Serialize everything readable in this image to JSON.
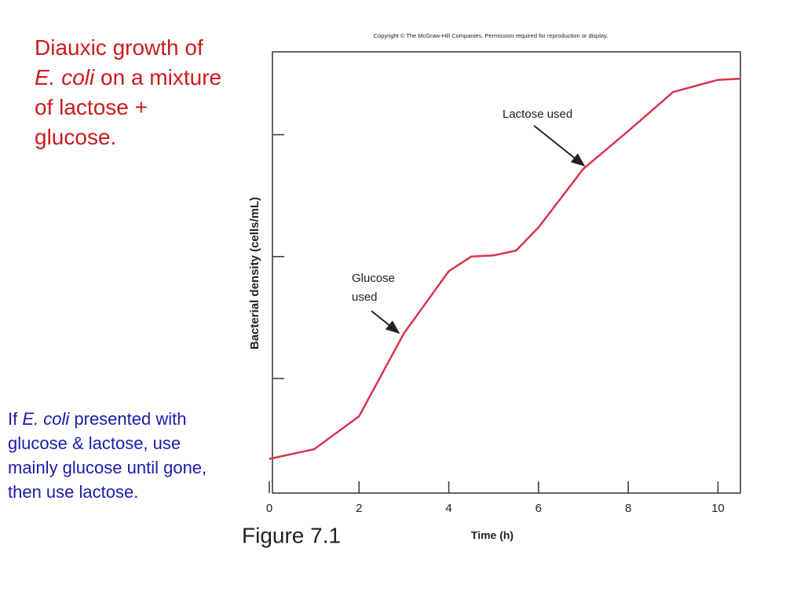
{
  "slide": {
    "title": [
      "Diauxic growth of ",
      "E. coli",
      " on a mixture of lactose + glucose."
    ],
    "body": [
      "If ",
      "E. coli",
      " presented with glucose & lactose, use mainly glucose until gone, then use lactose."
    ],
    "figure_label": "Figure 7.1",
    "copyright": "Copyright © The McGraw-Hill Companies, Permission required for reproduction or display."
  },
  "chart_data": {
    "type": "line",
    "x_label": "Time (h)",
    "y_label": "Bacterial density (cells/mL)",
    "x": [
      0,
      1,
      2,
      3,
      4,
      4.5,
      5,
      5.5,
      6,
      7,
      8,
      9,
      10,
      10.5
    ],
    "values": [
      0.34,
      0.42,
      0.69,
      1.37,
      1.88,
      2.0,
      2.01,
      2.05,
      2.24,
      2.72,
      3.03,
      3.35,
      3.45,
      3.46
    ],
    "color": "#d9344f",
    "xlim": [
      0,
      10.5
    ],
    "xticks": [
      0,
      2,
      4,
      6,
      8,
      10
    ],
    "ylim": [
      0.06,
      3.68
    ],
    "yticks": [
      1,
      2,
      3
    ],
    "annotations": [
      {
        "text": "Lactose used"
      },
      {
        "text": [
          "Glucose",
          "used"
        ]
      }
    ]
  }
}
